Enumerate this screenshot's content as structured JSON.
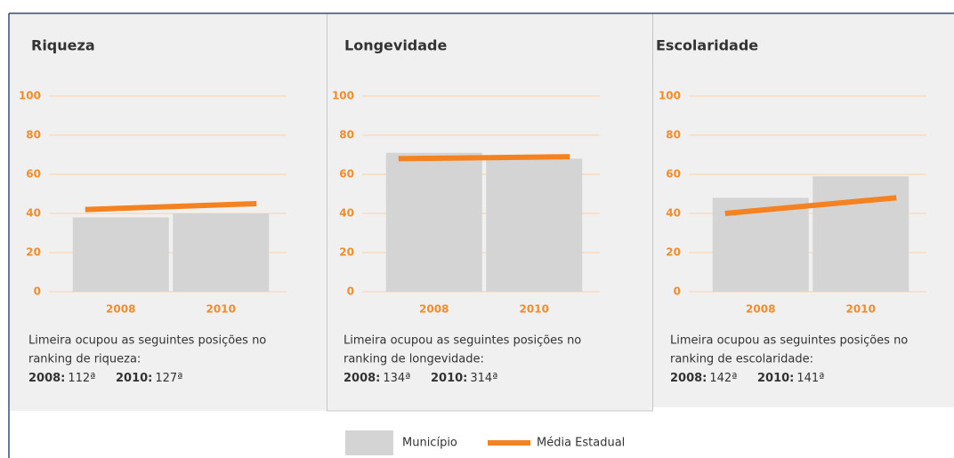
{
  "chart_data": [
    {
      "type": "bar",
      "title": "Riqueza",
      "categories": [
        "2008",
        "2010"
      ],
      "series": [
        {
          "name": "Município",
          "color": "#d4d4d4",
          "values": [
            38,
            40
          ]
        },
        {
          "name": "Média Estadual",
          "color": "#f58220",
          "type": "line",
          "values": [
            42,
            45
          ]
        }
      ],
      "ylim": [
        0,
        100
      ],
      "yticks": [
        0,
        20,
        40,
        60,
        80,
        100
      ],
      "grid": true,
      "annotation": [
        "Limeira ocupou as seguintes posições no",
        "ranking de riqueza:"
      ],
      "rankings": [
        {
          "year": "2008:",
          "position": "112ª"
        },
        {
          "year": "2010:",
          "position": "127ª"
        }
      ]
    },
    {
      "type": "bar",
      "title": "Longevidade",
      "categories": [
        "2008",
        "2010"
      ],
      "series": [
        {
          "name": "Município",
          "color": "#d4d4d4",
          "values": [
            71,
            68
          ]
        },
        {
          "name": "Média Estadual",
          "color": "#f58220",
          "type": "line",
          "values": [
            68,
            69
          ]
        }
      ],
      "ylim": [
        0,
        100
      ],
      "yticks": [
        0,
        20,
        40,
        60,
        80,
        100
      ],
      "grid": true,
      "annotation": [
        "Limeira ocupou as seguintes posições no",
        "ranking de longevidade:"
      ],
      "rankings": [
        {
          "year": "2008:",
          "position": "134ª"
        },
        {
          "year": "2010:",
          "position": "314ª"
        }
      ]
    },
    {
      "type": "bar",
      "title": "Escolaridade",
      "categories": [
        "2008",
        "2010"
      ],
      "series": [
        {
          "name": "Município",
          "color": "#d4d4d4",
          "values": [
            48,
            59
          ]
        },
        {
          "name": "Média Estadual",
          "color": "#f58220",
          "type": "line",
          "values": [
            40,
            48
          ]
        }
      ],
      "ylim": [
        0,
        100
      ],
      "yticks": [
        0,
        20,
        40,
        60,
        80,
        100
      ],
      "grid": true,
      "annotation": [
        "Limeira ocupou as seguintes posições no",
        "ranking de escolaridade:"
      ],
      "rankings": [
        {
          "year": "2008:",
          "position": "142ª"
        },
        {
          "year": "2010:",
          "position": "141ª"
        }
      ]
    }
  ]
}
